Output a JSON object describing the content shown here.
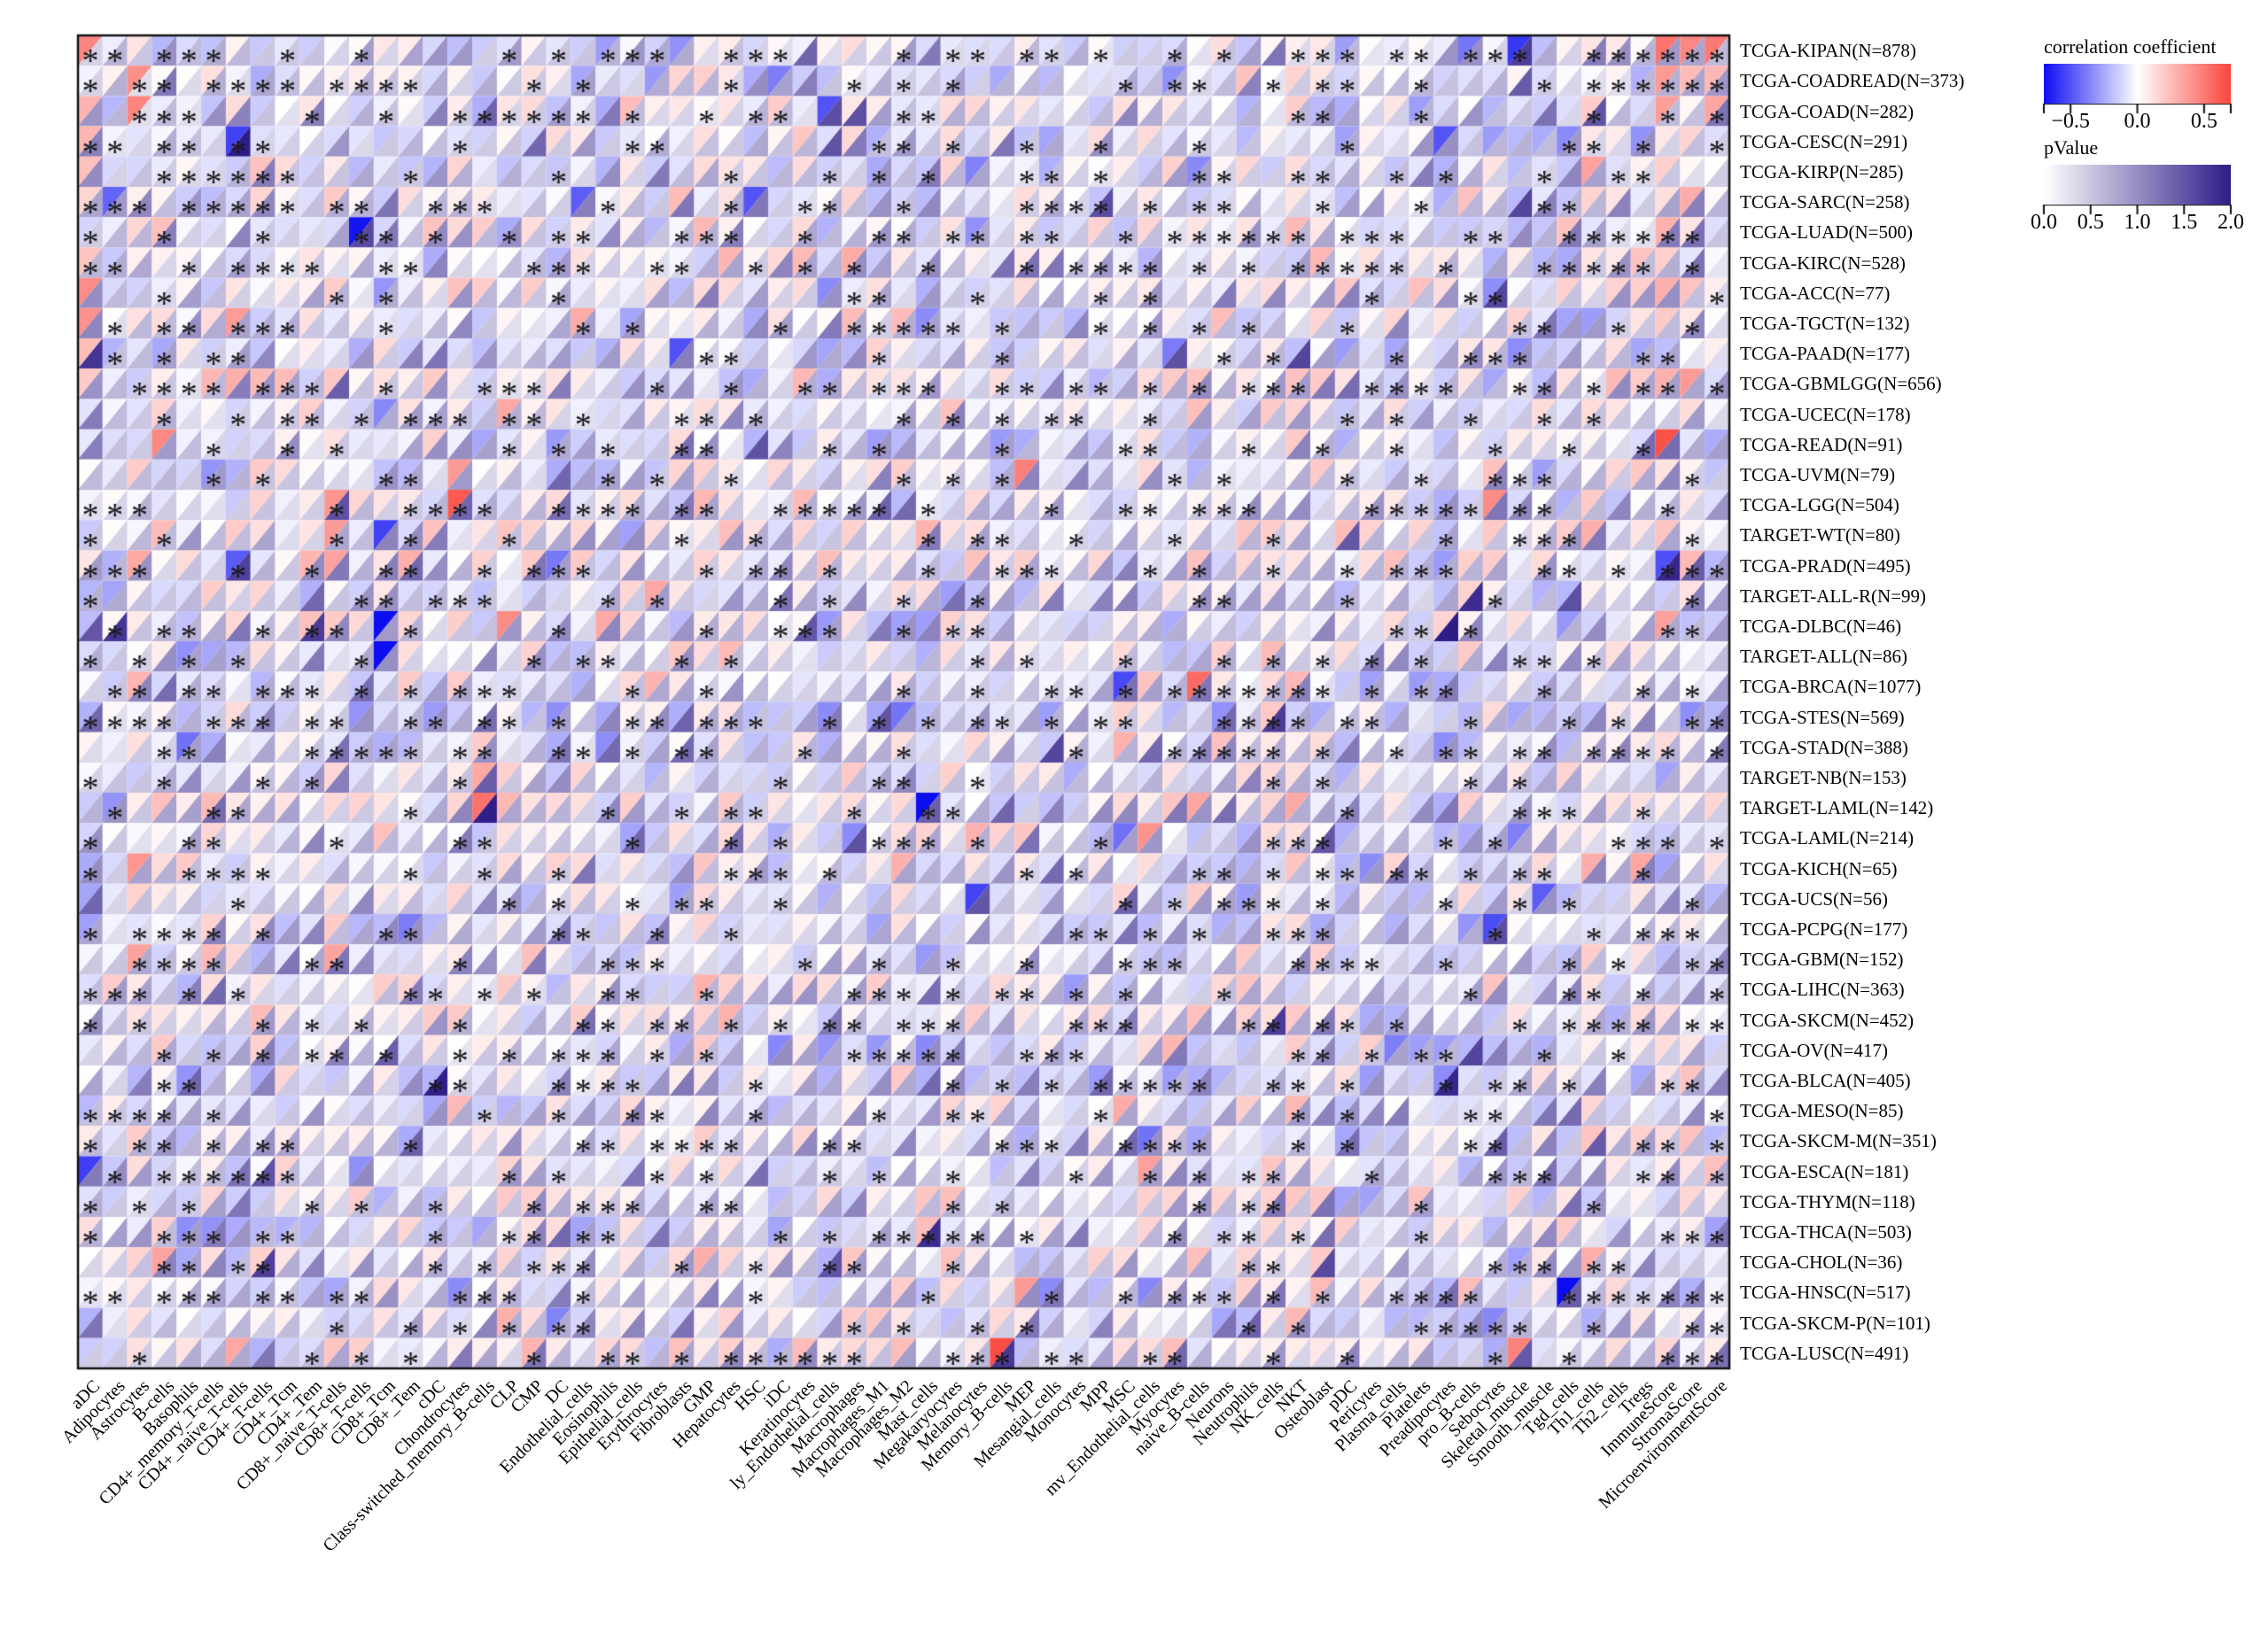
{
  "figure": {
    "kind": "pan-cancer immune-infiltration correlation heatmap",
    "background": "#ffffff"
  },
  "chart_data": {
    "type": "heatmap",
    "variant": "split-triangle",
    "triangle_mapping": {
      "upper_left": "correlation coefficient",
      "lower_right": "pValue"
    },
    "significance_marker": "*",
    "rows": [
      "TCGA-KIPAN(N=878)",
      "TCGA-COADREAD(N=373)",
      "TCGA-COAD(N=282)",
      "TCGA-CESC(N=291)",
      "TCGA-KIRP(N=285)",
      "TCGA-SARC(N=258)",
      "TCGA-LUAD(N=500)",
      "TCGA-KIRC(N=528)",
      "TCGA-ACC(N=77)",
      "TCGA-TGCT(N=132)",
      "TCGA-PAAD(N=177)",
      "TCGA-GBMLGG(N=656)",
      "TCGA-UCEC(N=178)",
      "TCGA-READ(N=91)",
      "TCGA-UVM(N=79)",
      "TCGA-LGG(N=504)",
      "TARGET-WT(N=80)",
      "TCGA-PRAD(N=495)",
      "TARGET-ALL-R(N=99)",
      "TCGA-DLBC(N=46)",
      "TARGET-ALL(N=86)",
      "TCGA-BRCA(N=1077)",
      "TCGA-STES(N=569)",
      "TCGA-STAD(N=388)",
      "TARGET-NB(N=153)",
      "TARGET-LAML(N=142)",
      "TCGA-LAML(N=214)",
      "TCGA-KICH(N=65)",
      "TCGA-UCS(N=56)",
      "TCGA-PCPG(N=177)",
      "TCGA-GBM(N=152)",
      "TCGA-LIHC(N=363)",
      "TCGA-SKCM(N=452)",
      "TCGA-OV(N=417)",
      "TCGA-BLCA(N=405)",
      "TCGA-MESO(N=85)",
      "TCGA-SKCM-M(N=351)",
      "TCGA-ESCA(N=181)",
      "TCGA-THYM(N=118)",
      "TCGA-THCA(N=503)",
      "TCGA-CHOL(N=36)",
      "TCGA-HNSC(N=517)",
      "TCGA-SKCM-P(N=101)",
      "TCGA-LUSC(N=491)"
    ],
    "columns": [
      "aDC",
      "Adipocytes",
      "Astrocytes",
      "B-cells",
      "Basophils",
      "CD4+_memory_T-cells",
      "CD4+_naive_T-cells",
      "CD4+_T-cells",
      "CD4+_Tcm",
      "CD4+_Tem",
      "CD8+_naive_T-cells",
      "CD8+_T-cells",
      "CD8+_Tcm",
      "CD8+_Tem",
      "cDC",
      "Chondrocytes",
      "Class-switched_memory_B-cells",
      "CLP",
      "CMP",
      "DC",
      "Endothelial_cells",
      "Eosinophils",
      "Epithelial_cells",
      "Erythrocytes",
      "Fibroblasts",
      "GMP",
      "Hepatocytes",
      "HSC",
      "iDC",
      "Keratinocytes",
      "ly_Endothelial_cells",
      "Macrophages",
      "Macrophages_M1",
      "Macrophages_M2",
      "Mast_cells",
      "Megakaryocytes",
      "Melanocytes",
      "Memory_B-cells",
      "MEP",
      "Mesangial_cells",
      "Monocytes",
      "MPP",
      "MSC",
      "mv_Endothelial_cells",
      "Myocytes",
      "naive_B-cells",
      "Neurons",
      "Neutrophils",
      "NK_cells",
      "NKT",
      "Osteoblast",
      "pDC",
      "Pericytes",
      "Plasma_cells",
      "Platelets",
      "Preadipocytes",
      "pro_B-cells",
      "Sebocytes",
      "Skeletal_muscle",
      "Smooth_muscle",
      "Tgd_cells",
      "Th1_cells",
      "Th2_cells",
      "Tregs",
      "ImmuneScore",
      "StromaScore",
      "MicroenvironmentScore"
    ],
    "legends": [
      {
        "title": "correlation coefficient",
        "type": "gradient",
        "stops": [
          "#0d0df2",
          "#ffffff",
          "#fa453c"
        ],
        "domain": [
          -0.7,
          0.7
        ],
        "ticks": [
          -0.5,
          0.0,
          0.5
        ],
        "tick_labels": [
          "−0.5",
          "0.0",
          "0.5"
        ]
      },
      {
        "title": "pValue",
        "type": "gradient",
        "stops": [
          "#ffffff",
          "#2e1c87"
        ],
        "domain": [
          0.0,
          2.0
        ],
        "ticks": [
          0.0,
          0.5,
          1.0,
          1.5,
          2.0
        ],
        "tick_labels": [
          "0.0",
          "0.5",
          "1.0",
          "1.5",
          "2.0"
        ]
      }
    ],
    "cells": {
      "synthesis": "procedural",
      "seed": 1337,
      "note": "Individual triangle values are not legible at source resolution; cell correlation/pValue/star fields are synthesized deterministically from the seed to reproduce the visual texture (mostly pale lavender/white with scattered red, blue and purple triangles; ~40% starred)."
    },
    "highlights": [
      {
        "row": "TCGA-DLBC(N=46)",
        "col": "CD8+_Tcm",
        "corr": -0.82,
        "p": 0.9,
        "star": false
      },
      {
        "row": "TARGET-ALL(N=86)",
        "col": "CD8+_Tcm",
        "corr": -0.85,
        "p": 1.0,
        "star": false
      },
      {
        "row": "TARGET-WT(N=80)",
        "col": "CD8+_Tcm",
        "corr": -0.55,
        "p": 1.1,
        "star": false
      },
      {
        "row": "TCGA-KIPAN(N=878)",
        "col": "aDC",
        "corr": 0.45,
        "p": 0.4,
        "star": true
      },
      {
        "row": "TCGA-KIPAN(N=878)",
        "col": "ImmuneScore",
        "corr": 0.52,
        "p": 0.9,
        "star": true
      },
      {
        "row": "TCGA-KIPAN(N=878)",
        "col": "StromaScore",
        "corr": 0.45,
        "p": 0.8,
        "star": true
      },
      {
        "row": "TCGA-KIPAN(N=878)",
        "col": "MicroenvironmentScore",
        "corr": 0.5,
        "p": 0.6,
        "star": true
      },
      {
        "row": "TCGA-COADREAD(N=373)",
        "col": "ImmuneScore",
        "corr": 0.38,
        "p": 0.7,
        "star": true
      },
      {
        "row": "TCGA-COAD(N=282)",
        "col": "ImmuneScore",
        "corr": 0.36,
        "p": 0.6,
        "star": true
      },
      {
        "row": "TCGA-COADREAD(N=373)",
        "col": "Astrocytes",
        "corr": 0.42,
        "p": 0.3,
        "star": true
      },
      {
        "row": "TCGA-COAD(N=282)",
        "col": "Astrocytes",
        "corr": 0.46,
        "p": 0.3,
        "star": true
      }
    ]
  }
}
